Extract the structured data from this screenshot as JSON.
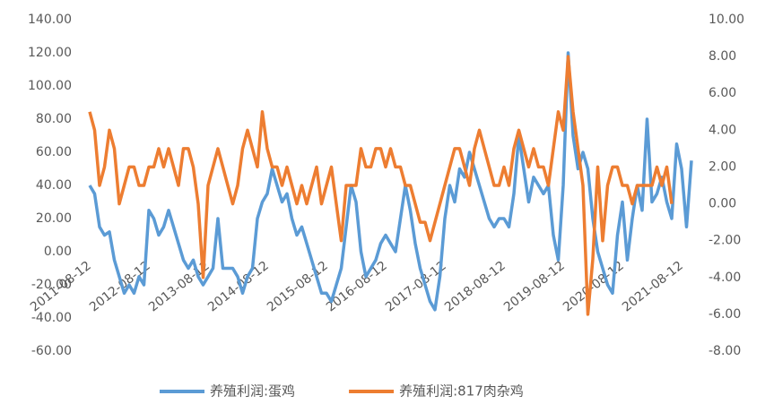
{
  "chart_data": {
    "type": "line",
    "categories": [
      "2011-08-12",
      null,
      null,
      null,
      null,
      null,
      null,
      null,
      null,
      null,
      null,
      null,
      "2012-08-12",
      null,
      null,
      null,
      null,
      null,
      null,
      null,
      null,
      null,
      null,
      null,
      "2013-08-12",
      null,
      null,
      null,
      null,
      null,
      null,
      null,
      null,
      null,
      null,
      null,
      "2014-08-12",
      null,
      null,
      null,
      null,
      null,
      null,
      null,
      null,
      null,
      null,
      null,
      "2015-08-12",
      null,
      null,
      null,
      null,
      null,
      null,
      null,
      null,
      null,
      null,
      null,
      "2016-08-12",
      null,
      null,
      null,
      null,
      null,
      null,
      null,
      null,
      null,
      null,
      null,
      "2017-08-12",
      null,
      null,
      null,
      null,
      null,
      null,
      null,
      null,
      null,
      null,
      null,
      "2018-08-12",
      null,
      null,
      null,
      null,
      null,
      null,
      null,
      null,
      null,
      null,
      null,
      "2019-08-12",
      null,
      null,
      null,
      null,
      null,
      null,
      null,
      null,
      null,
      null,
      null,
      "2020-08-12",
      null,
      null,
      null,
      null,
      null,
      null,
      null,
      null,
      null,
      null,
      null,
      "2021-08-12",
      null,
      null
    ],
    "series": [
      {
        "name": "养殖利润:蛋鸡",
        "color": "#5b9bd5",
        "axis": "y",
        "values": [
          40,
          35,
          15,
          10,
          12,
          -5,
          -15,
          -25,
          -20,
          -25,
          -15,
          -20,
          25,
          20,
          10,
          15,
          25,
          15,
          5,
          -5,
          -10,
          -5,
          -15,
          -20,
          -15,
          -10,
          20,
          -10,
          -10,
          -10,
          -15,
          -25,
          -15,
          -10,
          20,
          30,
          35,
          50,
          40,
          30,
          35,
          20,
          10,
          15,
          5,
          -5,
          -15,
          -25,
          -25,
          -30,
          -20,
          -10,
          15,
          40,
          30,
          0,
          -15,
          -10,
          -5,
          5,
          10,
          5,
          0,
          20,
          40,
          25,
          5,
          -10,
          -20,
          -30,
          -35,
          -15,
          20,
          40,
          30,
          50,
          45,
          60,
          50,
          40,
          30,
          20,
          15,
          20,
          20,
          15,
          35,
          70,
          50,
          30,
          45,
          40,
          35,
          40,
          10,
          -5,
          40,
          120,
          70,
          50,
          60,
          50,
          20,
          0,
          -10,
          -20,
          -25,
          10,
          30,
          -5,
          20,
          40,
          25,
          80,
          30,
          35,
          45,
          30,
          20,
          65,
          50,
          15,
          55
        ]
      },
      {
        "name": "养殖利润:817肉杂鸡",
        "color": "#ed7d31",
        "axis": "y2",
        "values": [
          5,
          4,
          1,
          2,
          4,
          3,
          0,
          1,
          2,
          2,
          1,
          1,
          2,
          2,
          3,
          2,
          3,
          2,
          1,
          3,
          3,
          2,
          0,
          -4,
          1,
          2,
          3,
          2,
          1,
          0,
          1,
          3,
          4,
          3,
          2,
          5,
          3,
          2,
          2,
          1,
          2,
          1,
          0,
          1,
          0,
          1,
          2,
          0,
          1,
          2,
          0,
          -2,
          1,
          1,
          1,
          3,
          2,
          2,
          3,
          3,
          2,
          3,
          2,
          2,
          1,
          1,
          0,
          -1,
          -1,
          -2,
          -1,
          0,
          1,
          2,
          3,
          3,
          2,
          1,
          3,
          4,
          3,
          2,
          1,
          1,
          2,
          1,
          3,
          4,
          3,
          2,
          3,
          2,
          2,
          1,
          3,
          5,
          4,
          8,
          5,
          3,
          1,
          -6,
          -3,
          2,
          -2,
          1,
          2,
          2,
          1,
          1,
          0,
          1,
          1,
          1,
          1,
          2,
          1,
          2,
          0,
          null,
          null,
          null,
          null
        ]
      }
    ],
    "ylim": [
      -60,
      140
    ],
    "yticks": [
      {
        "value": -60,
        "label": "-60.00"
      },
      {
        "value": -40,
        "label": "-40.00"
      },
      {
        "value": -20,
        "label": "-20.00"
      },
      {
        "value": 0,
        "label": "0.00"
      },
      {
        "value": 20,
        "label": "20.00"
      },
      {
        "value": 40,
        "label": "40.00"
      },
      {
        "value": 60,
        "label": "60.00"
      },
      {
        "value": 80,
        "label": "80.00"
      },
      {
        "value": 100,
        "label": "100.00"
      },
      {
        "value": 120,
        "label": "120.00"
      },
      {
        "value": 140,
        "label": "140.00"
      }
    ],
    "y2lim": [
      -8,
      10
    ],
    "y2ticks": [
      {
        "value": -8,
        "label": "-8.00"
      },
      {
        "value": -6,
        "label": "-6.00"
      },
      {
        "value": -4,
        "label": "-4.00"
      },
      {
        "value": -2,
        "label": "-2.00"
      },
      {
        "value": 0,
        "label": "0.00"
      },
      {
        "value": 2,
        "label": "2.00"
      },
      {
        "value": 4,
        "label": "4.00"
      },
      {
        "value": 6,
        "label": "6.00"
      },
      {
        "value": 8,
        "label": "8.00"
      },
      {
        "value": 10,
        "label": "10.00"
      }
    ],
    "legend": "bottom"
  }
}
